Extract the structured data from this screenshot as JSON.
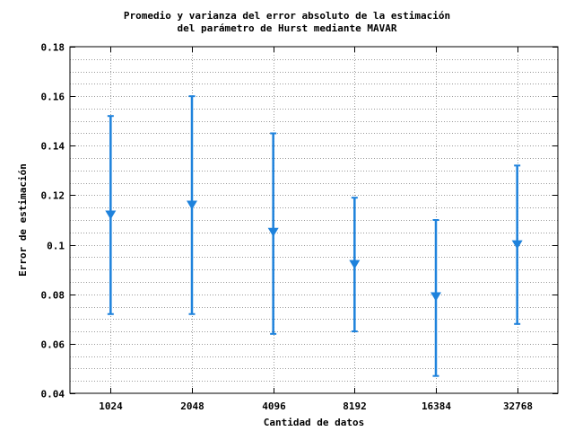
{
  "chart_data": {
    "type": "errorbar",
    "title_lines": [
      "Promedio y varianza del error absoluto de la estimación",
      "del parámetro de Hurst mediante MAVAR"
    ],
    "xlabel": "Cantidad de datos",
    "ylabel": "Error de estimación",
    "categories": [
      "1024",
      "2048",
      "4096",
      "8192",
      "16384",
      "32768"
    ],
    "mean": [
      0.112,
      0.116,
      0.105,
      0.092,
      0.079,
      0.1
    ],
    "lower": [
      0.072,
      0.072,
      0.064,
      0.065,
      0.047,
      0.068
    ],
    "upper": [
      0.152,
      0.16,
      0.145,
      0.119,
      0.11,
      0.132
    ],
    "ylim": [
      0.04,
      0.18
    ],
    "yticks": [
      0.04,
      0.06,
      0.08,
      0.1,
      0.12,
      0.14,
      0.16,
      0.18
    ],
    "ytick_labels": [
      "0.04",
      "0.06",
      "0.08",
      "0.1",
      "0.12",
      "0.14",
      "0.16",
      "0.18"
    ],
    "grid": true,
    "color": "#1e82dc"
  }
}
